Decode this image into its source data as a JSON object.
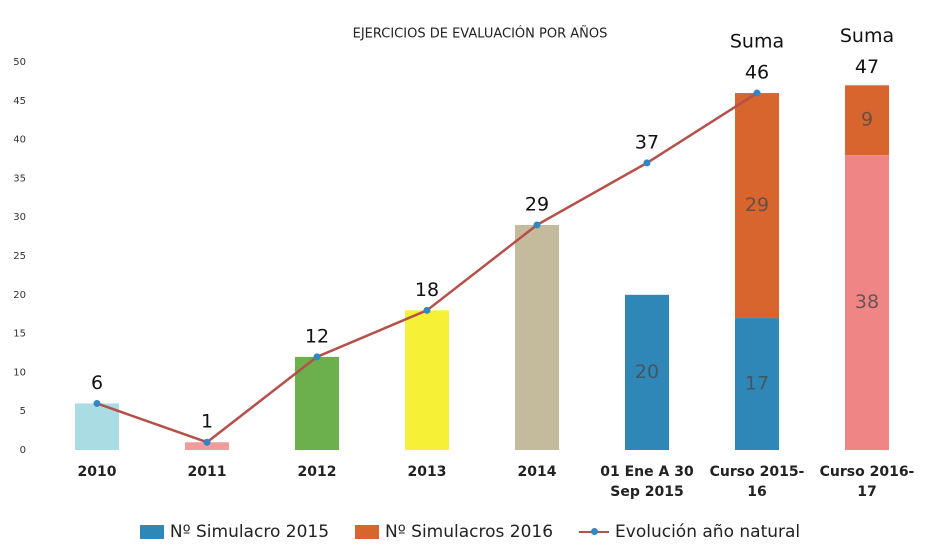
{
  "chart_data": {
    "type": "bar",
    "title": "EJERCICIOS DE EVALUACIÓN POR AÑOS",
    "categories": [
      "2010",
      "2011",
      "2012",
      "2013",
      "2014",
      "01 Ene A 30\nSep 2015",
      "Curso 2015-\n16",
      "Curso 2016-\n17"
    ],
    "series": [
      {
        "type": "bar",
        "colors": [
          "#a9dce3",
          "#ef9c9c",
          "#6cb04e",
          "#f6f136",
          "#c4bb9c",
          null,
          null,
          "#f08585"
        ],
        "values": [
          6,
          1,
          12,
          18,
          29,
          null,
          null,
          38
        ],
        "show_labels": [
          false,
          false,
          false,
          false,
          false,
          false,
          false,
          true
        ]
      },
      {
        "type": "bar",
        "name": "Nº Simulacro 2015",
        "color": "#2f87b8",
        "values": [
          null,
          null,
          null,
          null,
          null,
          20,
          17,
          null
        ],
        "show_labels": [
          false,
          false,
          false,
          false,
          false,
          true,
          true,
          false
        ]
      },
      {
        "type": "bar",
        "name": "Nº Simulacros 2016",
        "color": "#d9652e",
        "values": [
          null,
          null,
          null,
          null,
          null,
          null,
          29,
          9
        ],
        "show_labels": [
          false,
          false,
          false,
          false,
          false,
          false,
          true,
          true
        ]
      },
      {
        "type": "line",
        "name": "Evolución año natural",
        "color": "#b5504a",
        "marker_color": "#2f87c4",
        "values": [
          6,
          1,
          12,
          18,
          29,
          37,
          46,
          null
        ]
      }
    ],
    "totals": [
      null,
      null,
      null,
      null,
      null,
      null,
      null,
      47
    ],
    "annotations": [
      null,
      null,
      null,
      null,
      null,
      null,
      "Suma",
      "Suma"
    ],
    "ylim": [
      0,
      50
    ],
    "yticks": [
      0,
      5,
      10,
      15,
      20,
      25,
      30,
      35,
      40,
      45,
      50
    ],
    "grid": false
  }
}
